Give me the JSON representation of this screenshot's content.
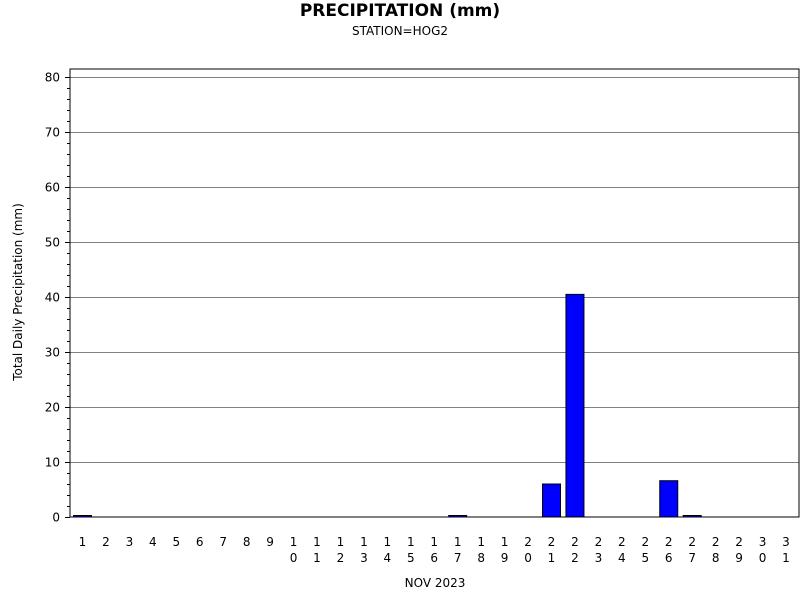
{
  "chart_data": {
    "type": "bar",
    "title": "PRECIPITATION (mm)",
    "subtitle": "STATION=HOG2",
    "xlabel": "NOV 2023",
    "ylabel": "Total Daily Precipitation (mm)",
    "ylim": [
      0,
      80
    ],
    "y_ticks": [
      0,
      10,
      20,
      30,
      40,
      50,
      60,
      70,
      80
    ],
    "grid": true,
    "legend": "none",
    "colors": {
      "bar": "#0000ff",
      "bar_outline": "#000000",
      "grid": "#808080"
    },
    "categories": [
      "1",
      "2",
      "3",
      "4",
      "5",
      "6",
      "7",
      "8",
      "9",
      "10",
      "11",
      "12",
      "13",
      "14",
      "15",
      "16",
      "17",
      "18",
      "19",
      "20",
      "21",
      "22",
      "23",
      "24",
      "25",
      "26",
      "27",
      "28",
      "29",
      "30",
      "31"
    ],
    "values": [
      0.2,
      0,
      0,
      0,
      0,
      0,
      0,
      0,
      0,
      0,
      0,
      0,
      0,
      0,
      0,
      0,
      0.2,
      0,
      0,
      0,
      6.0,
      40.5,
      0,
      0,
      0,
      6.6,
      0.2,
      0,
      0,
      0,
      0
    ]
  }
}
